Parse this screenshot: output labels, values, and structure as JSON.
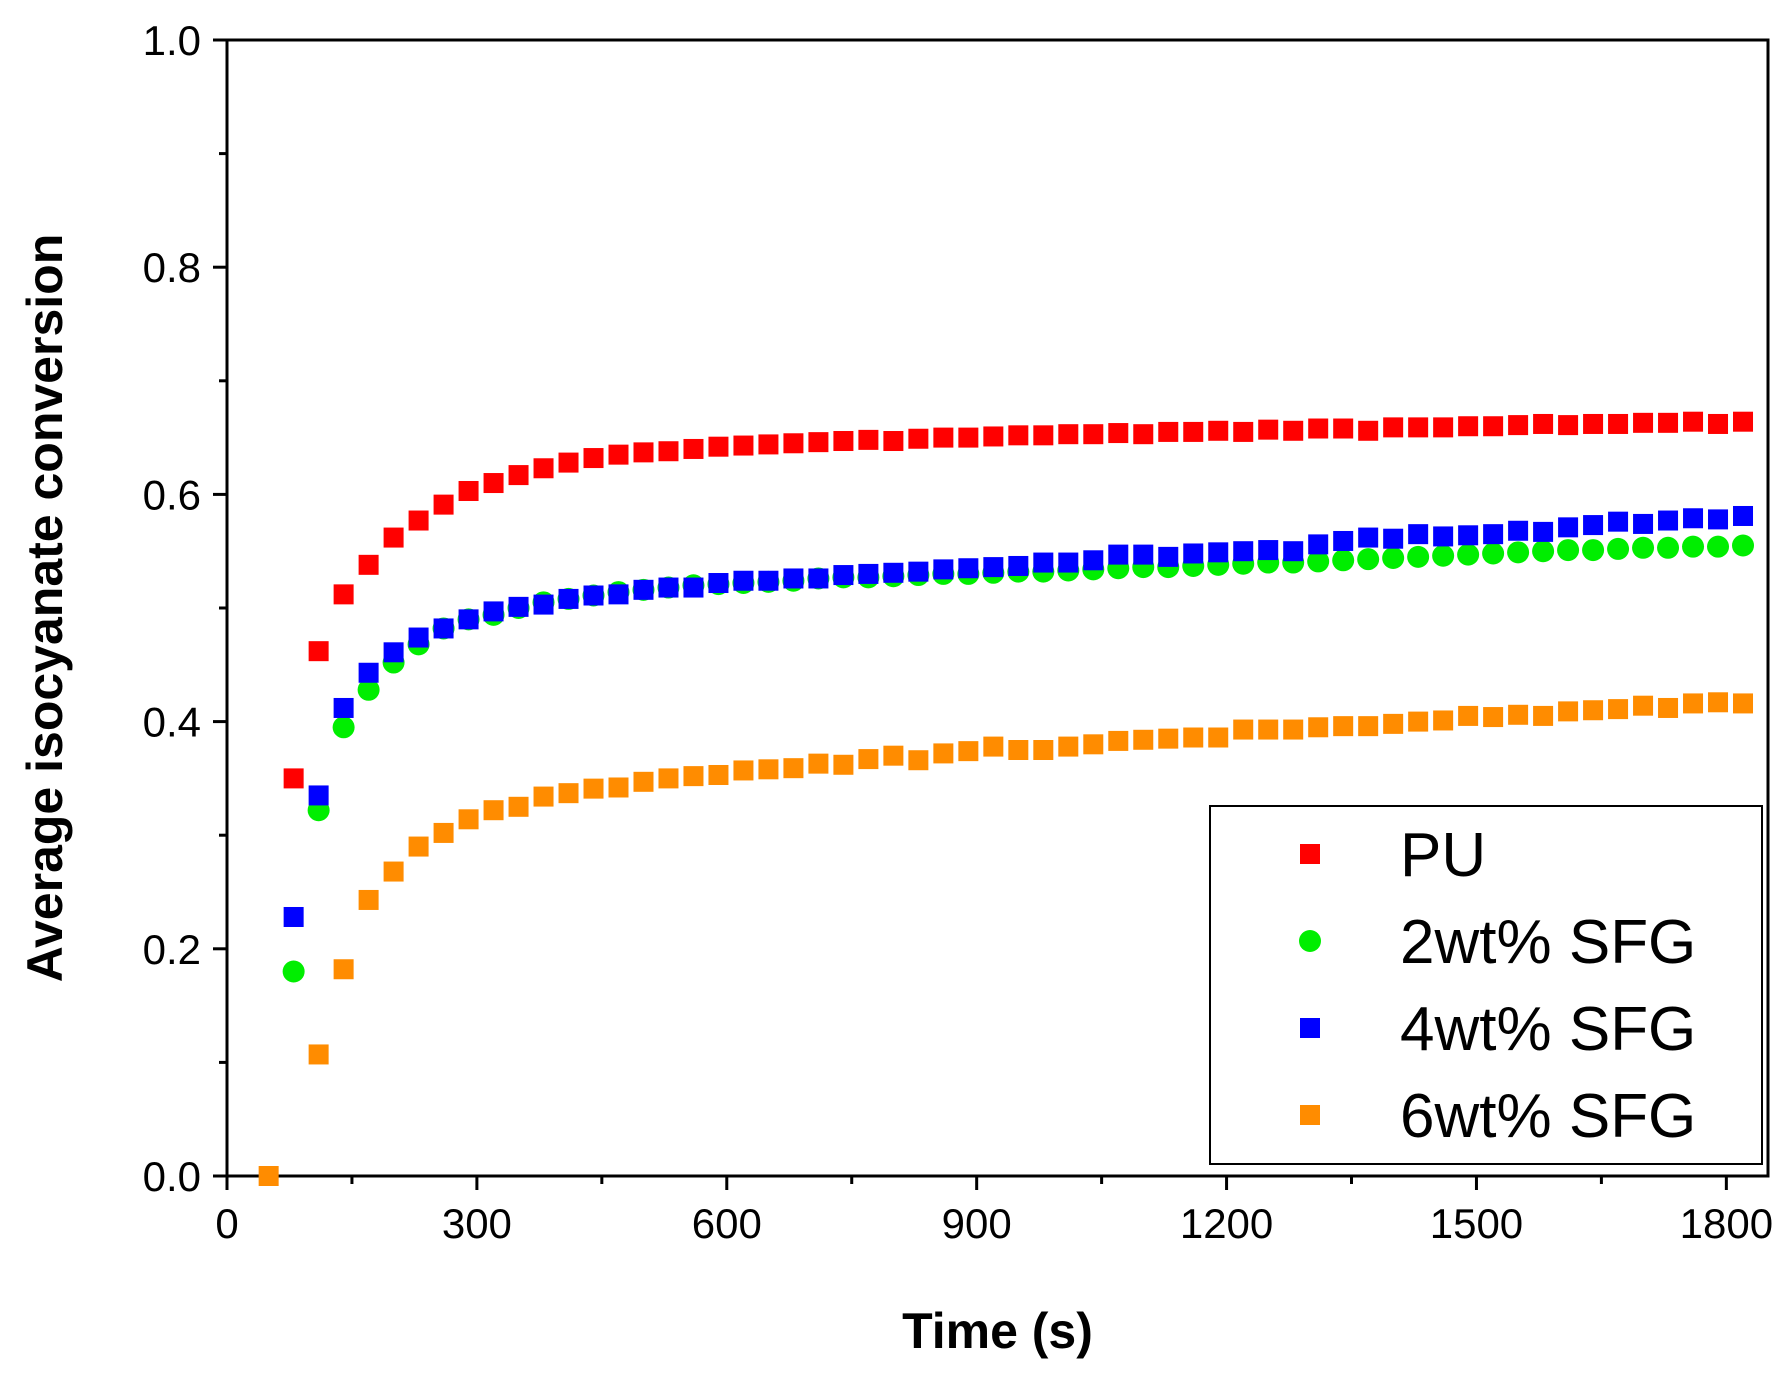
{
  "chart_data": {
    "type": "scatter",
    "title": "",
    "xlabel": "Time (s)",
    "ylabel": "Average isocyanate conversion",
    "xlim": [
      0,
      1850
    ],
    "ylim": [
      0,
      1.0
    ],
    "xticks": [
      0,
      300,
      600,
      900,
      1200,
      1500,
      1800
    ],
    "xtick_labels": [
      "0",
      "300",
      "600",
      "900",
      "1200",
      "1500",
      "1800"
    ],
    "yticks": [
      0.0,
      0.2,
      0.4,
      0.6,
      0.8,
      1.0
    ],
    "ytick_labels": [
      "0.0",
      "0.2",
      "0.4",
      "0.6",
      "0.8",
      "1.0"
    ],
    "grid": false,
    "legend_position": "bottom-right",
    "x": [
      80,
      110,
      140,
      170,
      200,
      230,
      260,
      290,
      320,
      350,
      380,
      410,
      440,
      470,
      500,
      530,
      560,
      590,
      620,
      650,
      680,
      710,
      740,
      770,
      800,
      830,
      860,
      890,
      920,
      950,
      980,
      1010,
      1040,
      1070,
      1100,
      1130,
      1160,
      1190,
      1220,
      1250,
      1280,
      1310,
      1340,
      1370,
      1400,
      1430,
      1460,
      1490,
      1520,
      1550,
      1580,
      1610,
      1640,
      1670,
      1700,
      1730,
      1760,
      1790,
      1820
    ],
    "series": [
      {
        "name": "PU",
        "color": "#ff0000",
        "marker": "square",
        "values": [
          0.35,
          0.462,
          0.512,
          0.538,
          0.562,
          0.577,
          0.591,
          0.603,
          0.61,
          0.617,
          0.623,
          0.628,
          0.632,
          0.635,
          0.637,
          0.638,
          0.64,
          0.642,
          0.643,
          0.644,
          0.645,
          0.646,
          0.647,
          0.648,
          0.647,
          0.649,
          0.65,
          0.65,
          0.651,
          0.652,
          0.652,
          0.653,
          0.653,
          0.654,
          0.653,
          0.655,
          0.655,
          0.656,
          0.655,
          0.657,
          0.656,
          0.658,
          0.658,
          0.656,
          0.659,
          0.659,
          0.659,
          0.66,
          0.66,
          0.661,
          0.662,
          0.661,
          0.662,
          0.662,
          0.663,
          0.663,
          0.664,
          0.662,
          0.664
        ]
      },
      {
        "name": "2wt% SFG",
        "color": "#00ee00",
        "marker": "circle",
        "values": [
          0.18,
          0.322,
          0.395,
          0.428,
          0.452,
          0.468,
          0.482,
          0.49,
          0.494,
          0.5,
          0.505,
          0.508,
          0.511,
          0.514,
          0.516,
          0.518,
          0.52,
          0.521,
          0.522,
          0.523,
          0.524,
          0.526,
          0.527,
          0.527,
          0.528,
          0.529,
          0.53,
          0.53,
          0.531,
          0.532,
          0.532,
          0.533,
          0.534,
          0.535,
          0.536,
          0.536,
          0.537,
          0.538,
          0.539,
          0.54,
          0.54,
          0.541,
          0.542,
          0.543,
          0.544,
          0.545,
          0.546,
          0.547,
          0.548,
          0.549,
          0.55,
          0.551,
          0.551,
          0.552,
          0.553,
          0.553,
          0.554,
          0.554,
          0.555
        ]
      },
      {
        "name": "4wt% SFG",
        "color": "#0000ff",
        "marker": "square",
        "values": [
          0.228,
          0.335,
          0.412,
          0.443,
          0.461,
          0.474,
          0.482,
          0.49,
          0.497,
          0.501,
          0.503,
          0.508,
          0.511,
          0.512,
          0.516,
          0.518,
          0.518,
          0.522,
          0.524,
          0.524,
          0.526,
          0.526,
          0.529,
          0.53,
          0.531,
          0.532,
          0.534,
          0.535,
          0.536,
          0.537,
          0.54,
          0.54,
          0.542,
          0.547,
          0.547,
          0.545,
          0.548,
          0.549,
          0.55,
          0.551,
          0.55,
          0.556,
          0.559,
          0.562,
          0.561,
          0.565,
          0.563,
          0.564,
          0.565,
          0.568,
          0.567,
          0.571,
          0.573,
          0.576,
          0.574,
          0.577,
          0.579,
          0.578,
          0.581
        ]
      },
      {
        "name": "6wt% SFG",
        "color": "#ff8c00",
        "marker": "square",
        "values": [
          0.0,
          0.107,
          0.182,
          0.243,
          0.268,
          0.29,
          0.302,
          0.314,
          0.322,
          0.325,
          0.334,
          0.337,
          0.341,
          0.342,
          0.347,
          0.35,
          0.352,
          0.353,
          0.357,
          0.358,
          0.359,
          0.363,
          0.362,
          0.367,
          0.37,
          0.366,
          0.372,
          0.374,
          0.378,
          0.375,
          0.375,
          0.378,
          0.38,
          0.383,
          0.384,
          0.385,
          0.386,
          0.386,
          0.393,
          0.393,
          0.393,
          0.395,
          0.396,
          0.396,
          0.398,
          0.4,
          0.401,
          0.405,
          0.404,
          0.406,
          0.405,
          0.409,
          0.41,
          0.411,
          0.414,
          0.412,
          0.416,
          0.417,
          0.416
        ]
      }
    ]
  }
}
